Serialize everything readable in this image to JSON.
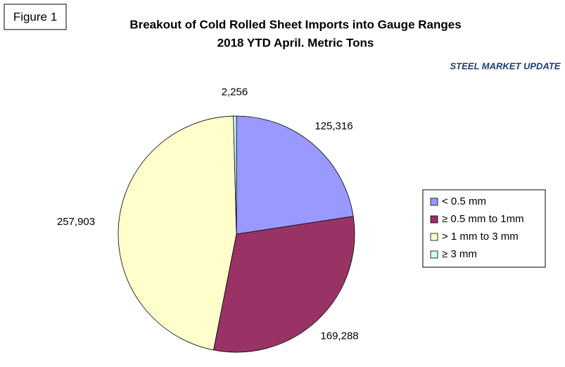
{
  "chart_data": {
    "type": "pie",
    "figure_label": "Figure 1",
    "title": "Breakout of Cold Rolled Sheet Imports into Gauge Ranges",
    "subtitle": "2018 YTD April. Metric Tons",
    "logo": "STEEL MARKET UPDATE",
    "categories": [
      "< 0.5 mm",
      "≥ 0.5 mm to 1mm",
      "> 1 mm to 3 mm",
      "≥ 3 mm"
    ],
    "values": [
      125316,
      169288,
      257903,
      2256
    ],
    "value_labels": [
      "125,316",
      "169,288",
      "257,903",
      "2,256"
    ],
    "colors": [
      "#9999ff",
      "#993366",
      "#ffffcc",
      "#ccffff"
    ],
    "legend": "right"
  }
}
